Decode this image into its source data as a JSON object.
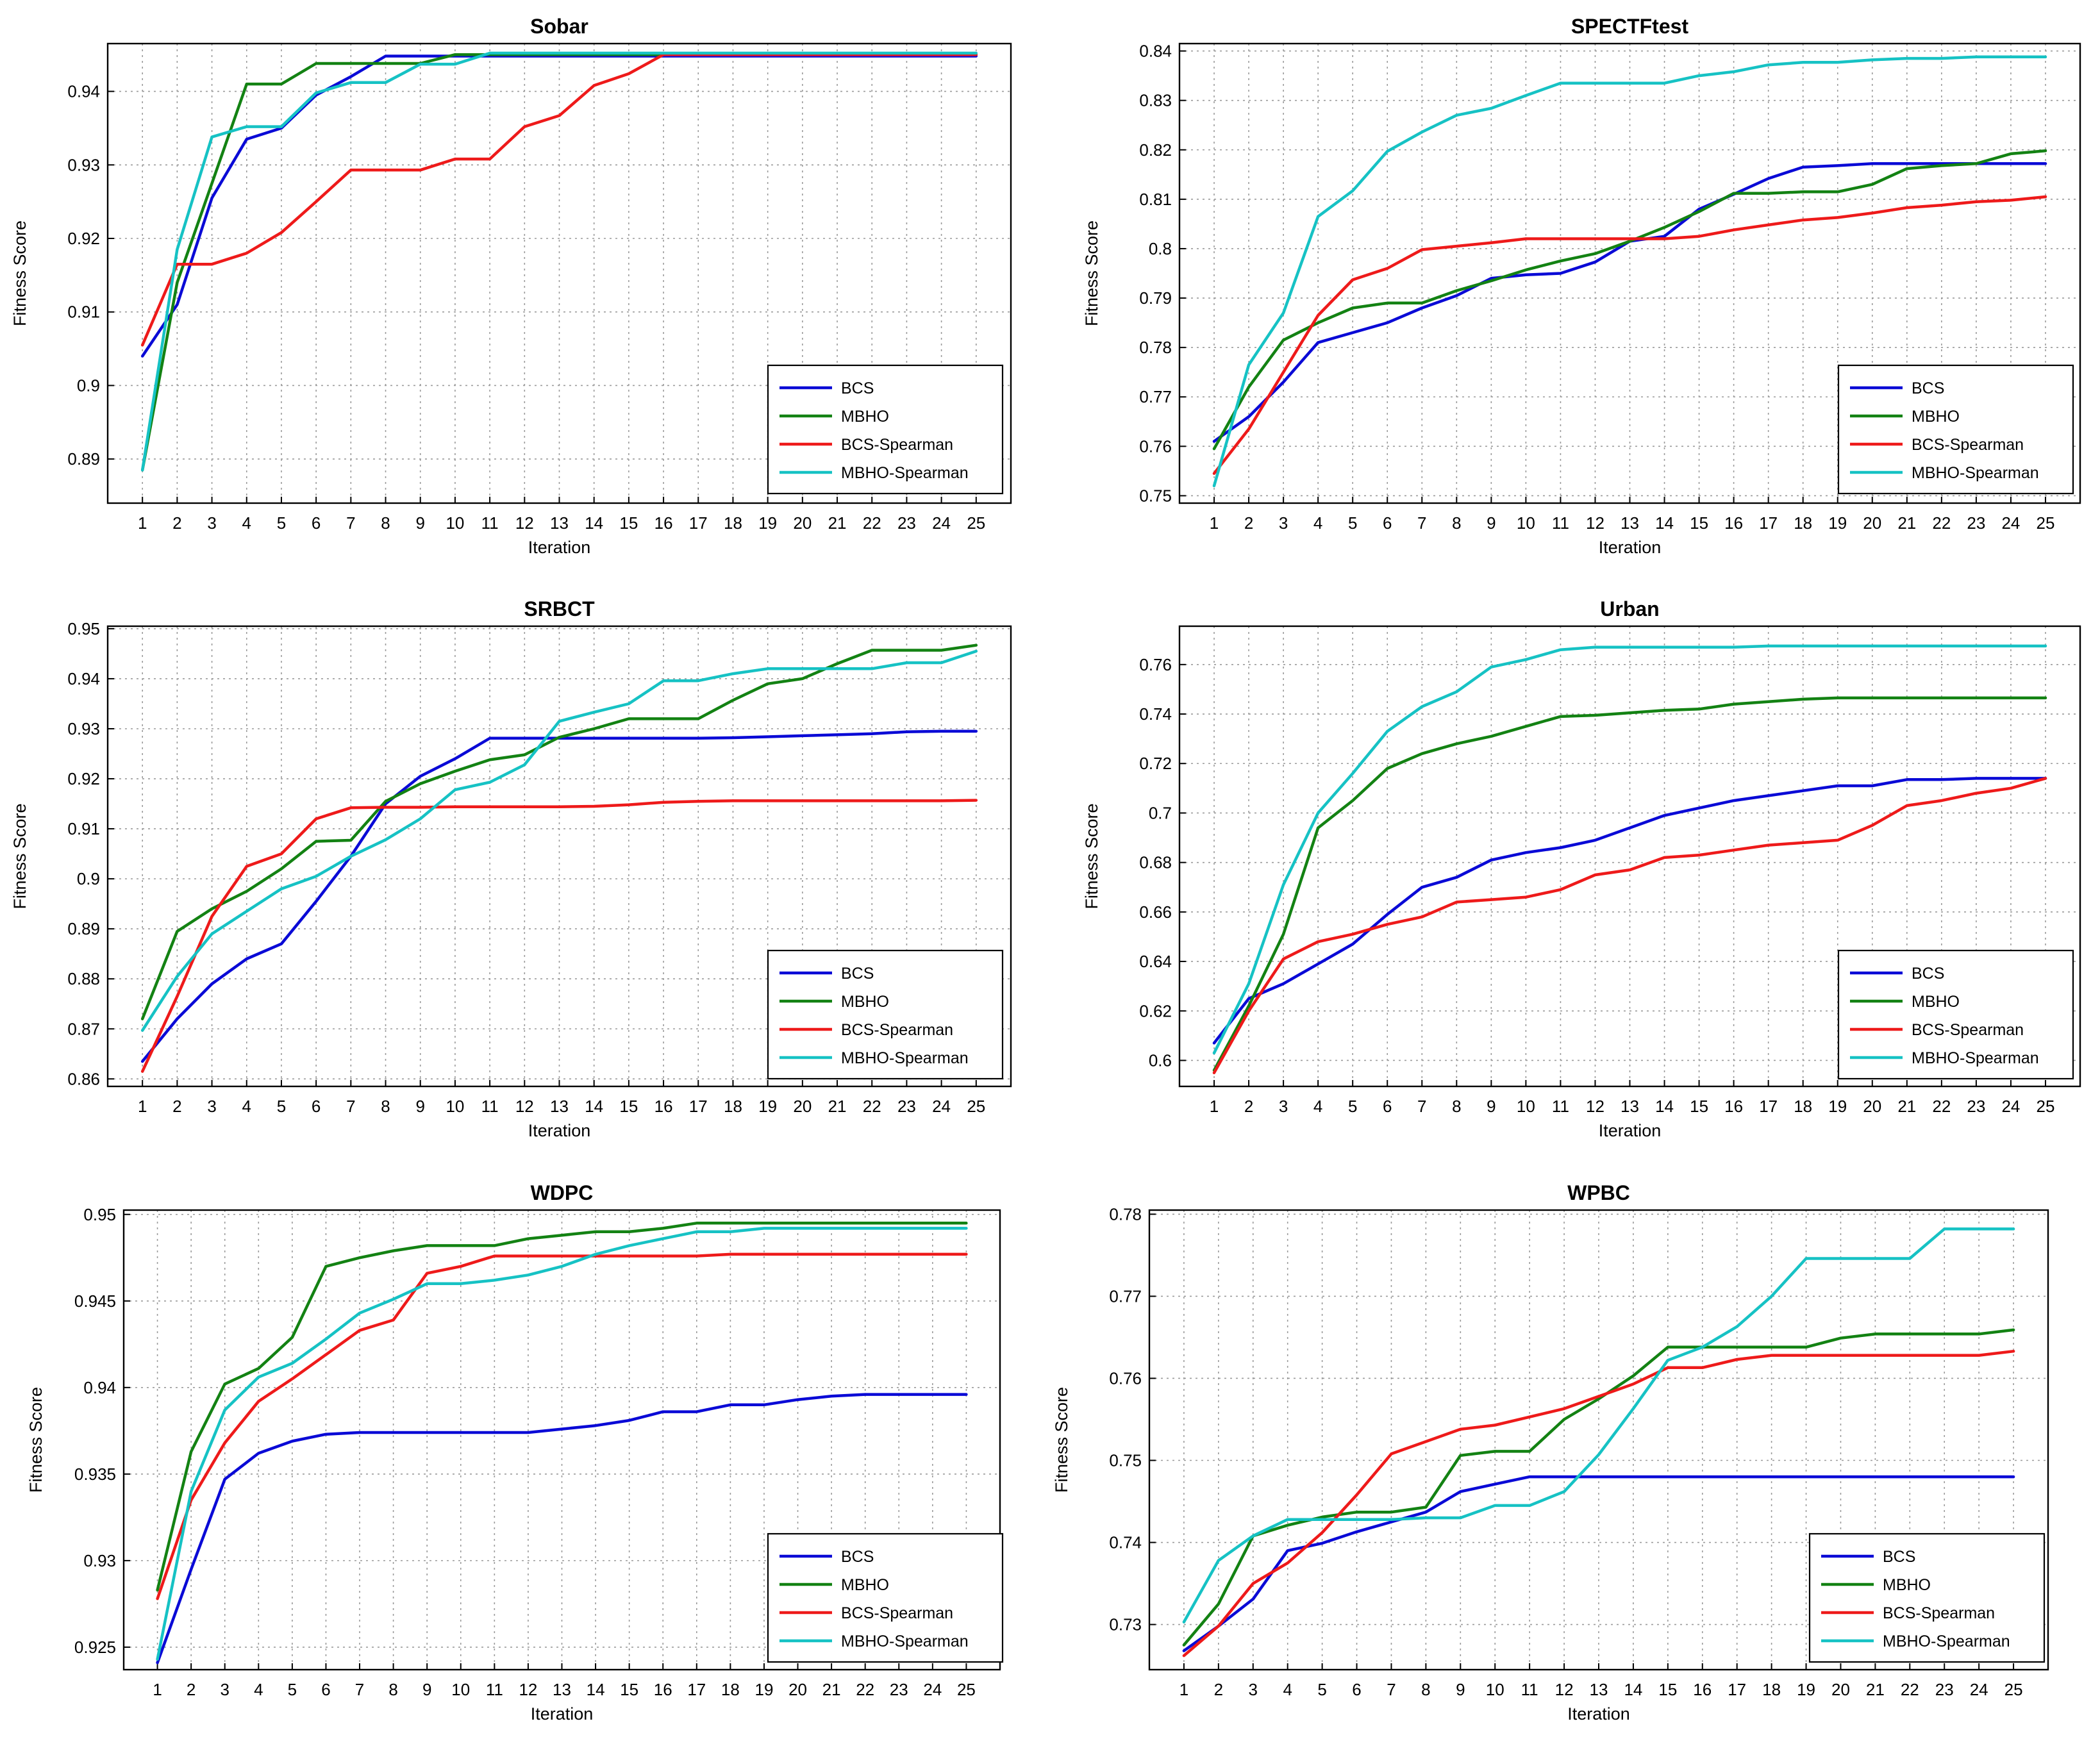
{
  "colors": {
    "BCS": "#0a0ad6",
    "MBHO": "#138213",
    "BCS-Spearman": "#ee1a1a",
    "MBHO-Spearman": "#16c2c4"
  },
  "chart_data": [
    {
      "type": "line",
      "title": "Sobar",
      "xlabel": "Iteration",
      "ylabel": "Fitness Score",
      "x": [
        1,
        2,
        3,
        4,
        5,
        6,
        7,
        8,
        9,
        10,
        11,
        12,
        13,
        14,
        15,
        16,
        17,
        18,
        19,
        20,
        21,
        22,
        23,
        24,
        25
      ],
      "xlim": [
        0,
        26
      ],
      "ylim": [
        0.884,
        0.9465
      ],
      "yticks": [
        0.89,
        0.9,
        0.91,
        0.92,
        0.93,
        0.94
      ],
      "ytick_labels": [
        "0.89",
        "0.9",
        "0.91",
        "0.92",
        "0.93",
        "0.94"
      ],
      "grid": true,
      "legend": "bottom-right",
      "series": [
        {
          "name": "BCS",
          "values": [
            0.904,
            0.911,
            0.9255,
            0.9335,
            0.935,
            0.9395,
            0.942,
            0.9448,
            0.9448,
            0.9448,
            0.9448,
            0.9448,
            0.9448,
            0.9448,
            0.9448,
            0.9448,
            0.9448,
            0.9448,
            0.9448,
            0.9448,
            0.9448,
            0.9448,
            0.9448,
            0.9448,
            0.9448
          ]
        },
        {
          "name": "MBHO",
          "values": [
            0.8885,
            0.914,
            0.9275,
            0.941,
            0.941,
            0.9438,
            0.9438,
            0.9438,
            0.9438,
            0.945,
            0.945,
            0.945,
            0.945,
            0.945,
            0.945,
            0.945,
            0.945,
            0.945,
            0.945,
            0.945,
            0.945,
            0.945,
            0.945,
            0.945,
            0.945
          ]
        },
        {
          "name": "BCS-Spearman",
          "values": [
            0.9055,
            0.9165,
            0.9165,
            0.918,
            0.9208,
            0.925,
            0.9293,
            0.9293,
            0.9293,
            0.9308,
            0.9308,
            0.9352,
            0.9367,
            0.9408,
            0.9424,
            0.945,
            0.945,
            0.945,
            0.945,
            0.945,
            0.945,
            0.945,
            0.945,
            0.945,
            0.945
          ]
        },
        {
          "name": "MBHO-Spearman",
          "values": [
            0.8885,
            0.9185,
            0.9338,
            0.9352,
            0.9352,
            0.9398,
            0.9412,
            0.9412,
            0.9437,
            0.9437,
            0.9452,
            0.9452,
            0.9452,
            0.9452,
            0.9452,
            0.9452,
            0.9452,
            0.9452,
            0.9452,
            0.9452,
            0.9452,
            0.9452,
            0.9452,
            0.9452,
            0.9452
          ]
        }
      ]
    },
    {
      "type": "line",
      "title": "SPECTFtest",
      "xlabel": "Iteration",
      "ylabel": "Fitness Score",
      "x": [
        1,
        2,
        3,
        4,
        5,
        6,
        7,
        8,
        9,
        10,
        11,
        12,
        13,
        14,
        15,
        16,
        17,
        18,
        19,
        20,
        21,
        22,
        23,
        24,
        25
      ],
      "xlim": [
        0,
        26
      ],
      "ylim": [
        0.7485,
        0.8415
      ],
      "yticks": [
        0.75,
        0.76,
        0.77,
        0.78,
        0.79,
        0.8,
        0.81,
        0.82,
        0.83,
        0.84
      ],
      "ytick_labels": [
        "0.75",
        "0.76",
        "0.77",
        "0.78",
        "0.79",
        "0.8",
        "0.81",
        "0.82",
        "0.83",
        "0.84"
      ],
      "grid": true,
      "legend": "bottom-right",
      "series": [
        {
          "name": "BCS",
          "values": [
            0.761,
            0.766,
            0.773,
            0.781,
            0.783,
            0.785,
            0.788,
            0.7905,
            0.794,
            0.7947,
            0.795,
            0.7973,
            0.8015,
            0.8025,
            0.808,
            0.811,
            0.8142,
            0.8165,
            0.8168,
            0.8172,
            0.8172,
            0.8172,
            0.8172,
            0.8172,
            0.8172
          ]
        },
        {
          "name": "MBHO",
          "values": [
            0.7595,
            0.772,
            0.7815,
            0.785,
            0.788,
            0.789,
            0.789,
            0.7915,
            0.7935,
            0.7957,
            0.7975,
            0.799,
            0.8015,
            0.8043,
            0.8075,
            0.8112,
            0.8112,
            0.8115,
            0.8115,
            0.813,
            0.8162,
            0.8168,
            0.8172,
            0.8192,
            0.8198
          ]
        },
        {
          "name": "BCS-Spearman",
          "values": [
            0.7545,
            0.7635,
            0.775,
            0.7865,
            0.7937,
            0.796,
            0.7998,
            0.8005,
            0.8012,
            0.802,
            0.802,
            0.802,
            0.802,
            0.802,
            0.8025,
            0.8038,
            0.8048,
            0.8058,
            0.8063,
            0.8072,
            0.8083,
            0.8088,
            0.8095,
            0.8098,
            0.8105
          ]
        },
        {
          "name": "MBHO-Spearman",
          "values": [
            0.752,
            0.7765,
            0.787,
            0.8065,
            0.8117,
            0.8197,
            0.8236,
            0.827,
            0.8284,
            0.831,
            0.8335,
            0.8335,
            0.8335,
            0.8335,
            0.835,
            0.8358,
            0.8372,
            0.8377,
            0.8377,
            0.8382,
            0.8385,
            0.8385,
            0.8388,
            0.8388,
            0.8388
          ]
        }
      ]
    },
    {
      "type": "line",
      "title": "SRBCT",
      "xlabel": "Iteration",
      "ylabel": "Fitness Score",
      "x": [
        1,
        2,
        3,
        4,
        5,
        6,
        7,
        8,
        9,
        10,
        11,
        12,
        13,
        14,
        15,
        16,
        17,
        18,
        19,
        20,
        21,
        22,
        23,
        24,
        25
      ],
      "xlim": [
        0,
        26
      ],
      "ylim": [
        0.8585,
        0.9505
      ],
      "yticks": [
        0.86,
        0.87,
        0.88,
        0.89,
        0.9,
        0.91,
        0.92,
        0.93,
        0.94,
        0.95
      ],
      "ytick_labels": [
        "0.86",
        "0.87",
        "0.88",
        "0.89",
        "0.9",
        "0.91",
        "0.92",
        "0.93",
        "0.94",
        "0.95"
      ],
      "grid": true,
      "legend": "bottom-right",
      "series": [
        {
          "name": "BCS",
          "values": [
            0.8635,
            0.872,
            0.879,
            0.884,
            0.887,
            0.8955,
            0.9045,
            0.915,
            0.9205,
            0.924,
            0.9281,
            0.9281,
            0.9281,
            0.9281,
            0.9281,
            0.9281,
            0.9281,
            0.9282,
            0.9284,
            0.9286,
            0.9288,
            0.929,
            0.9294,
            0.9295,
            0.9295
          ]
        },
        {
          "name": "MBHO",
          "values": [
            0.872,
            0.8895,
            0.894,
            0.8975,
            0.902,
            0.9075,
            0.9077,
            0.9155,
            0.919,
            0.9215,
            0.9238,
            0.9248,
            0.9283,
            0.93,
            0.932,
            0.932,
            0.932,
            0.9357,
            0.939,
            0.94,
            0.943,
            0.9457,
            0.9457,
            0.9457,
            0.9467
          ]
        },
        {
          "name": "BCS-Spearman",
          "values": [
            0.8615,
            0.8765,
            0.8925,
            0.9025,
            0.905,
            0.912,
            0.9142,
            0.9143,
            0.9143,
            0.9144,
            0.9144,
            0.9144,
            0.9144,
            0.9145,
            0.9148,
            0.9153,
            0.9155,
            0.9156,
            0.9156,
            0.9156,
            0.9156,
            0.9156,
            0.9156,
            0.9156,
            0.9157
          ]
        },
        {
          "name": "MBHO-Spearman",
          "values": [
            0.8697,
            0.8805,
            0.889,
            0.8935,
            0.898,
            0.9005,
            0.9045,
            0.9078,
            0.912,
            0.9178,
            0.9193,
            0.9228,
            0.9315,
            0.9333,
            0.935,
            0.9396,
            0.9396,
            0.941,
            0.942,
            0.942,
            0.942,
            0.942,
            0.9432,
            0.9432,
            0.9455
          ]
        }
      ]
    },
    {
      "type": "line",
      "title": "Urban",
      "xlabel": "Iteration",
      "ylabel": "Fitness Score",
      "x": [
        1,
        2,
        3,
        4,
        5,
        6,
        7,
        8,
        9,
        10,
        11,
        12,
        13,
        14,
        15,
        16,
        17,
        18,
        19,
        20,
        21,
        22,
        23,
        24,
        25
      ],
      "xlim": [
        0,
        26
      ],
      "ylim": [
        0.5895,
        0.7755
      ],
      "yticks": [
        0.6,
        0.62,
        0.64,
        0.66,
        0.68,
        0.7,
        0.72,
        0.74,
        0.76
      ],
      "ytick_labels": [
        "0.6",
        "0.62",
        "0.64",
        "0.66",
        "0.68",
        "0.7",
        "0.72",
        "0.74",
        "0.76"
      ],
      "grid": true,
      "legend": "bottom-right",
      "series": [
        {
          "name": "BCS",
          "values": [
            0.607,
            0.625,
            0.631,
            0.639,
            0.647,
            0.659,
            0.67,
            0.674,
            0.681,
            0.684,
            0.686,
            0.689,
            0.694,
            0.699,
            0.702,
            0.705,
            0.707,
            0.709,
            0.711,
            0.711,
            0.7135,
            0.7135,
            0.714,
            0.714,
            0.714
          ]
        },
        {
          "name": "MBHO",
          "values": [
            0.596,
            0.622,
            0.651,
            0.694,
            0.705,
            0.718,
            0.724,
            0.728,
            0.731,
            0.735,
            0.739,
            0.7395,
            0.7405,
            0.7415,
            0.742,
            0.744,
            0.745,
            0.746,
            0.7465,
            0.7465,
            0.7465,
            0.7465,
            0.7465,
            0.7465,
            0.7465
          ]
        },
        {
          "name": "BCS-Spearman",
          "values": [
            0.595,
            0.62,
            0.641,
            0.648,
            0.651,
            0.655,
            0.658,
            0.664,
            0.665,
            0.666,
            0.669,
            0.675,
            0.677,
            0.682,
            0.683,
            0.685,
            0.687,
            0.688,
            0.689,
            0.695,
            0.703,
            0.705,
            0.708,
            0.71,
            0.714
          ]
        },
        {
          "name": "MBHO-Spearman",
          "values": [
            0.603,
            0.631,
            0.671,
            0.7,
            0.716,
            0.733,
            0.743,
            0.749,
            0.759,
            0.762,
            0.766,
            0.767,
            0.767,
            0.767,
            0.767,
            0.767,
            0.7675,
            0.7675,
            0.7675,
            0.7675,
            0.7675,
            0.7675,
            0.7675,
            0.7675,
            0.7675
          ]
        }
      ]
    },
    {
      "type": "line",
      "title": "WDPC",
      "xlabel": "Iteration",
      "ylabel": "Fitness Score",
      "x": [
        1,
        2,
        3,
        4,
        5,
        6,
        7,
        8,
        9,
        10,
        11,
        12,
        13,
        14,
        15,
        16,
        17,
        18,
        19,
        20,
        21,
        22,
        23,
        24,
        25
      ],
      "xlim": [
        0,
        26
      ],
      "ylim": [
        0.9237,
        0.95025
      ],
      "yticks": [
        0.925,
        0.93,
        0.935,
        0.94,
        0.945,
        0.95
      ],
      "ytick_labels": [
        "0.925",
        "0.93",
        "0.935",
        "0.94",
        "0.945",
        "0.95"
      ],
      "grid": true,
      "legend": "bottom-right",
      "series": [
        {
          "name": "BCS",
          "values": [
            0.9241,
            0.9295,
            0.9347,
            0.9362,
            0.9369,
            0.9373,
            0.9374,
            0.9374,
            0.9374,
            0.9374,
            0.9374,
            0.9374,
            0.9376,
            0.9378,
            0.9381,
            0.9386,
            0.9386,
            0.939,
            0.939,
            0.9393,
            0.9395,
            0.9396,
            0.9396,
            0.9396,
            0.9396
          ]
        },
        {
          "name": "MBHO",
          "values": [
            0.9283,
            0.9363,
            0.9402,
            0.9411,
            0.9429,
            0.947,
            0.9475,
            0.9479,
            0.9482,
            0.9482,
            0.9482,
            0.9486,
            0.9488,
            0.949,
            0.949,
            0.9492,
            0.9495,
            0.9495,
            0.9495,
            0.9495,
            0.9495,
            0.9495,
            0.9495,
            0.9495,
            0.9495
          ]
        },
        {
          "name": "BCS-Spearman",
          "values": [
            0.9278,
            0.9335,
            0.9368,
            0.9392,
            0.9405,
            0.9419,
            0.9433,
            0.9439,
            0.9466,
            0.947,
            0.9476,
            0.9476,
            0.9476,
            0.9476,
            0.9476,
            0.9476,
            0.9476,
            0.9477,
            0.9477,
            0.9477,
            0.9477,
            0.9477,
            0.9477,
            0.9477,
            0.9477
          ]
        },
        {
          "name": "MBHO-Spearman",
          "values": [
            0.9243,
            0.934,
            0.9387,
            0.9406,
            0.9414,
            0.9428,
            0.9443,
            0.9451,
            0.946,
            0.946,
            0.9462,
            0.9465,
            0.947,
            0.9477,
            0.9482,
            0.9486,
            0.949,
            0.949,
            0.9492,
            0.9492,
            0.9492,
            0.9492,
            0.9492,
            0.9492,
            0.9492
          ]
        }
      ]
    },
    {
      "type": "line",
      "title": "WPBC",
      "xlabel": "Iteration",
      "ylabel": "Fitness Score",
      "x": [
        1,
        2,
        3,
        4,
        5,
        6,
        7,
        8,
        9,
        10,
        11,
        12,
        13,
        14,
        15,
        16,
        17,
        18,
        19,
        20,
        21,
        22,
        23,
        24,
        25
      ],
      "xlim": [
        0,
        26
      ],
      "ylim": [
        0.7245,
        0.7805
      ],
      "yticks": [
        0.73,
        0.74,
        0.75,
        0.76,
        0.77,
        0.78
      ],
      "ytick_labels": [
        "0.73",
        "0.74",
        "0.75",
        "0.76",
        "0.77",
        "0.78"
      ],
      "grid": true,
      "legend": "bottom-right",
      "series": [
        {
          "name": "BCS",
          "values": [
            0.7268,
            0.7298,
            0.7331,
            0.739,
            0.7399,
            0.7413,
            0.7425,
            0.7437,
            0.7462,
            0.7471,
            0.748,
            0.748,
            0.748,
            0.748,
            0.748,
            0.748,
            0.748,
            0.748,
            0.748,
            0.748,
            0.748,
            0.748,
            0.748,
            0.748,
            0.748
          ]
        },
        {
          "name": "MBHO",
          "values": [
            0.7275,
            0.7325,
            0.7408,
            0.7421,
            0.7431,
            0.7437,
            0.7437,
            0.7443,
            0.7506,
            0.7511,
            0.7511,
            0.755,
            0.7575,
            0.7603,
            0.7638,
            0.7638,
            0.7638,
            0.7638,
            0.7638,
            0.7649,
            0.7654,
            0.7654,
            0.7654,
            0.7654,
            0.7659
          ]
        },
        {
          "name": "BCS-Spearman",
          "values": [
            0.7262,
            0.7298,
            0.735,
            0.7375,
            0.7412,
            0.7458,
            0.7508,
            0.7523,
            0.7538,
            0.7543,
            0.7553,
            0.7563,
            0.7578,
            0.7593,
            0.7613,
            0.7613,
            0.7623,
            0.7628,
            0.7628,
            0.7628,
            0.7628,
            0.7628,
            0.7628,
            0.7628,
            0.7633
          ]
        },
        {
          "name": "MBHO-Spearman",
          "values": [
            0.7303,
            0.7378,
            0.7408,
            0.7428,
            0.7428,
            0.7428,
            0.7428,
            0.743,
            0.743,
            0.7445,
            0.7445,
            0.7462,
            0.7507,
            0.7563,
            0.7622,
            0.7638,
            0.7663,
            0.77,
            0.7746,
            0.7746,
            0.7746,
            0.7746,
            0.7782,
            0.7782,
            0.7782
          ]
        }
      ]
    }
  ]
}
